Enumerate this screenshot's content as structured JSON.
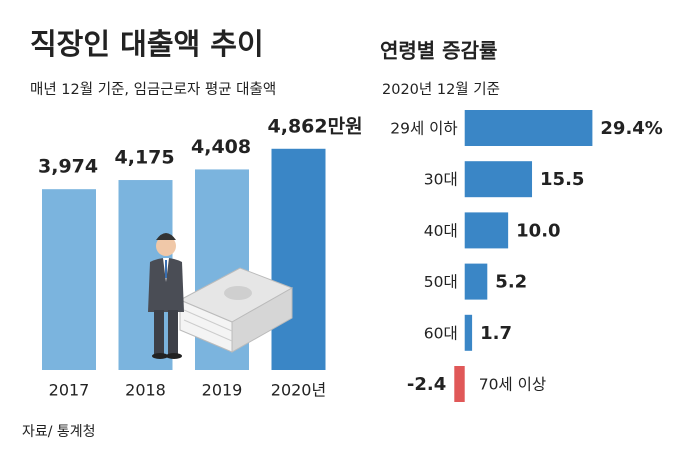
{
  "chart_data": [
    {
      "type": "bar",
      "title": "직장인 대출액 추이",
      "subtitle": "매년 12월 기준, 임금근로자 평균 대출액",
      "categories": [
        "2017",
        "2018",
        "2019",
        "2020년"
      ],
      "values": [
        3974,
        4175,
        4408,
        4862
      ],
      "value_labels": [
        "3,974",
        "4,175",
        "4,408",
        "4,862만원"
      ],
      "colors": [
        "#7bb4de",
        "#7bb4de",
        "#7bb4de",
        "#3a86c6"
      ],
      "ylim": [
        0,
        5000
      ],
      "source": "자료/ 통계청"
    },
    {
      "type": "barh",
      "title": "연령별 증감률",
      "subtitle": "2020년 12월 기준",
      "categories": [
        "29세 이하",
        "30대",
        "40대",
        "50대",
        "60대",
        "70세 이상"
      ],
      "values": [
        29.4,
        15.5,
        10.0,
        5.2,
        1.7,
        -2.4
      ],
      "value_labels": [
        "29.4%",
        "15.5",
        "10.0",
        "5.2",
        "1.7",
        "-2.4"
      ],
      "colors": [
        "#3a86c6",
        "#3a86c6",
        "#3a86c6",
        "#3a86c6",
        "#3a86c6",
        "#e05858"
      ],
      "xlim": [
        -5,
        30
      ]
    }
  ]
}
